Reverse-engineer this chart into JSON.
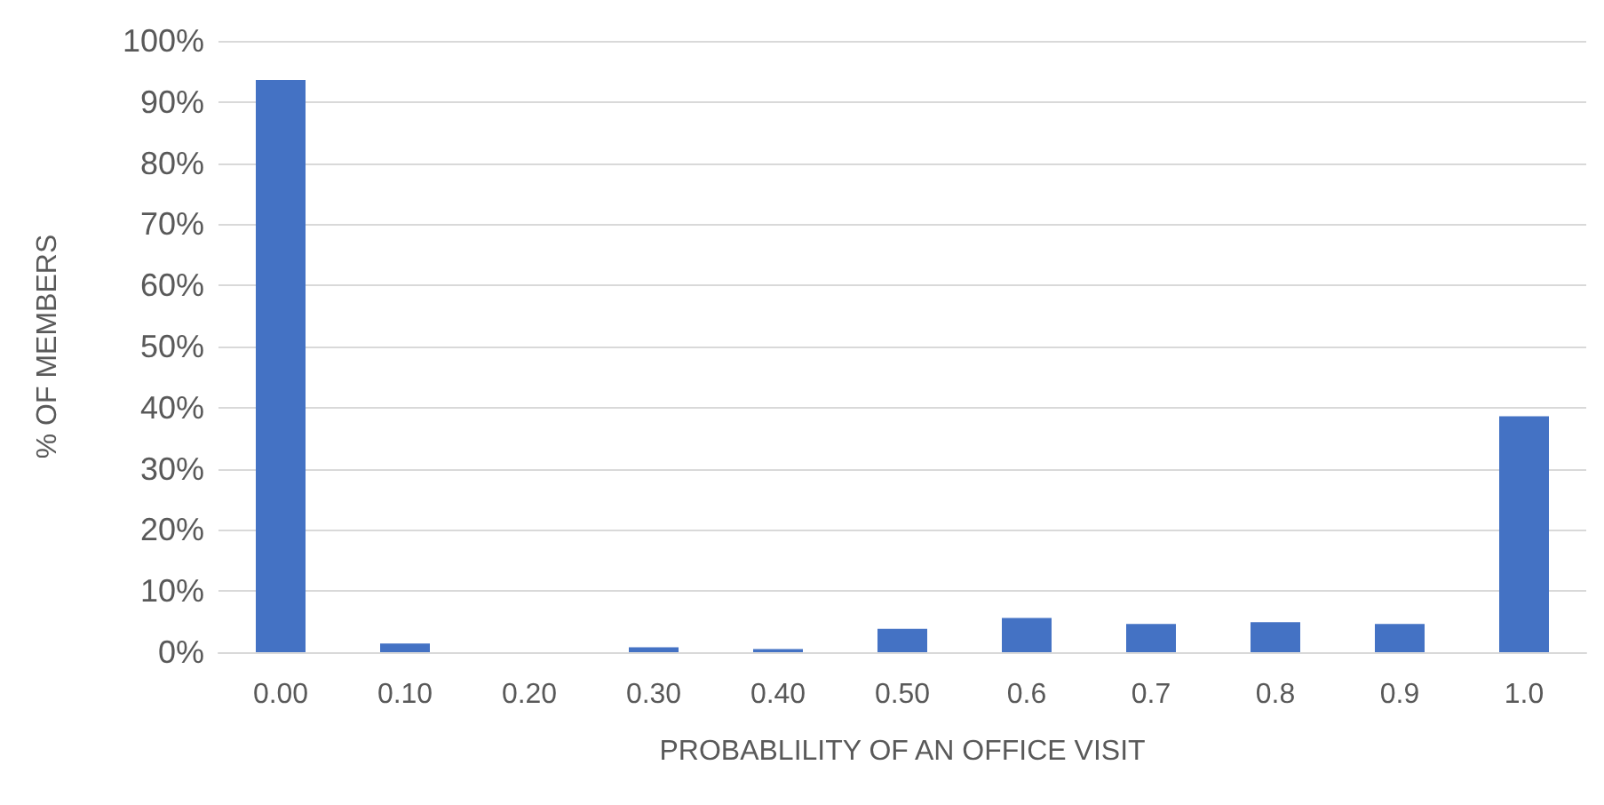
{
  "chart_data": {
    "type": "bar",
    "xlabel": "PROBABLILITY OF AN OFFICE VISIT",
    "ylabel": "% OF MEMBERS",
    "categories": [
      "0.00",
      "0.10",
      "0.20",
      "0.30",
      "0.40",
      "0.50",
      "0.6",
      "0.7",
      "0.8",
      "0.9",
      "1.0"
    ],
    "values": [
      93.6,
      1.4,
      0,
      0.8,
      0.5,
      3.8,
      5.6,
      4.6,
      4.9,
      4.6,
      38.6
    ],
    "color": "#4472c4",
    "ylim": [
      0,
      100
    ],
    "yticks": [
      {
        "value": 0,
        "label": "0%"
      },
      {
        "value": 10,
        "label": "10%"
      },
      {
        "value": 20,
        "label": "20%"
      },
      {
        "value": 30,
        "label": "30%"
      },
      {
        "value": 40,
        "label": "40%"
      },
      {
        "value": 50,
        "label": "50%"
      },
      {
        "value": 60,
        "label": "60%"
      },
      {
        "value": 70,
        "label": "70%"
      },
      {
        "value": 80,
        "label": "80%"
      },
      {
        "value": 90,
        "label": "90%"
      },
      {
        "value": 100,
        "label": "100%"
      }
    ],
    "grid": "y"
  }
}
